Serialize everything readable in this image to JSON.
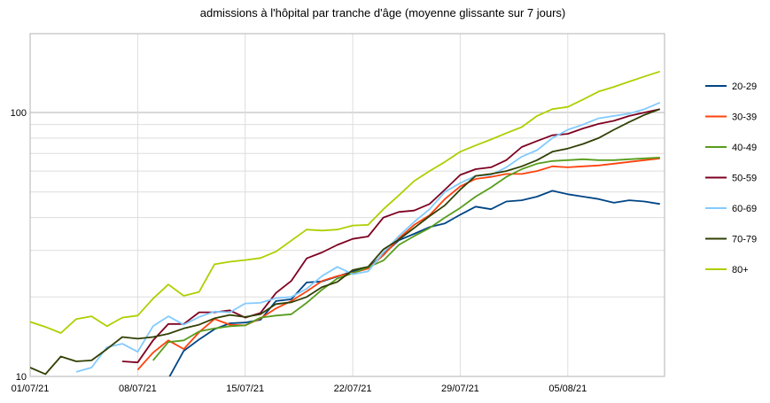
{
  "chart_data": {
    "type": "line",
    "title": "admissions à l'hôpital par tranche d'âge (moyenne glissante sur 7 jours)",
    "xlabel": "",
    "ylabel": "",
    "y_scale": "log",
    "ylim": [
      10,
      200
    ],
    "y_ticks": [
      10,
      100
    ],
    "y_tick_labels": [
      "10",
      "100"
    ],
    "x_tick_labels": [
      "01/07/21",
      "08/07/21",
      "15/07/21",
      "22/07/21",
      "29/07/21",
      "05/08/21"
    ],
    "x": [
      "01/07/21",
      "02/07/21",
      "03/07/21",
      "04/07/21",
      "05/07/21",
      "06/07/21",
      "07/07/21",
      "08/07/21",
      "09/07/21",
      "10/07/21",
      "11/07/21",
      "12/07/21",
      "13/07/21",
      "14/07/21",
      "15/07/21",
      "16/07/21",
      "17/07/21",
      "18/07/21",
      "19/07/21",
      "20/07/21",
      "21/07/21",
      "22/07/21",
      "23/07/21",
      "24/07/21",
      "25/07/21",
      "26/07/21",
      "27/07/21",
      "28/07/21",
      "29/07/21",
      "30/07/21",
      "31/07/21",
      "01/08/21",
      "02/08/21",
      "03/08/21",
      "04/08/21",
      "05/08/21",
      "06/08/21",
      "07/08/21",
      "08/08/21",
      "09/08/21",
      "10/08/21",
      "11/08/21"
    ],
    "legend_position": "right",
    "grid": true,
    "series": [
      {
        "name": "20-29",
        "color": "#004586",
        "values": [
          null,
          null,
          null,
          null,
          null,
          null,
          null,
          null,
          8.7,
          9.8,
          12.5,
          13.8,
          15.1,
          15.9,
          16.0,
          16.4,
          19.3,
          19.6,
          22.7,
          22.9,
          23.9,
          25.0,
          25.7,
          29.1,
          32.8,
          34.7,
          36.8,
          38.0,
          41.0,
          44.0,
          43.0,
          46.0,
          46.5,
          48.0,
          50.5,
          49.0,
          48.0,
          47.0,
          45.5,
          46.5,
          46.0,
          45.0
        ]
      },
      {
        "name": "30-39",
        "color": "#ff420e",
        "values": [
          null,
          null,
          null,
          null,
          null,
          null,
          null,
          10.6,
          12.3,
          13.7,
          12.7,
          14.7,
          16.5,
          15.7,
          15.6,
          16.6,
          18.1,
          19.3,
          21.0,
          23.0,
          24.0,
          24.7,
          25.6,
          28.8,
          33.3,
          37.5,
          40.8,
          47.0,
          52.5,
          56.0,
          57.0,
          58.5,
          58.5,
          60.0,
          62.5,
          62.0,
          62.5,
          63.0,
          64.0,
          65.0,
          66.0,
          67.0
        ]
      },
      {
        "name": "40-49",
        "color": "#579d1c",
        "values": [
          null,
          null,
          null,
          null,
          null,
          null,
          null,
          null,
          11.5,
          13.5,
          13.7,
          14.8,
          15.2,
          15.5,
          15.6,
          16.7,
          17.0,
          17.2,
          19.0,
          21.3,
          23.5,
          24.6,
          25.9,
          27.5,
          31.5,
          34.0,
          36.5,
          40.0,
          43.5,
          48.0,
          52.0,
          57.0,
          61.0,
          64.0,
          65.5,
          66.0,
          66.5,
          66.0,
          66.0,
          66.5,
          67.0,
          67.5
        ]
      },
      {
        "name": "50-59",
        "color": "#7e0021",
        "values": [
          null,
          null,
          null,
          null,
          null,
          null,
          11.4,
          11.3,
          13.7,
          15.8,
          15.8,
          17.5,
          17.5,
          17.8,
          16.7,
          17.4,
          20.7,
          23.0,
          28.0,
          29.5,
          31.5,
          33.2,
          33.9,
          40.0,
          42.0,
          42.5,
          45.0,
          51.0,
          58.0,
          61.0,
          62.0,
          66.0,
          74.0,
          78.0,
          82.0,
          83.0,
          87.0,
          90.5,
          93.0,
          97.0,
          100.0,
          103.0
        ]
      },
      {
        "name": "60-69",
        "color": "#83caff",
        "values": [
          null,
          null,
          null,
          10.4,
          10.8,
          12.9,
          13.3,
          12.4,
          15.5,
          16.9,
          15.7,
          16.8,
          17.6,
          17.5,
          18.9,
          19.0,
          19.8,
          20.0,
          21.5,
          24.0,
          26.0,
          24.4,
          25.0,
          29.5,
          34.0,
          38.5,
          43.0,
          50.0,
          54.0,
          57.5,
          58.0,
          62.0,
          68.0,
          72.0,
          80.0,
          86.0,
          90.0,
          95.0,
          97.0,
          99.0,
          103.0,
          109.0
        ]
      },
      {
        "name": "70-79",
        "color": "#314004",
        "values": [
          10.8,
          10.2,
          11.9,
          11.4,
          11.5,
          12.7,
          14.1,
          13.9,
          14.1,
          14.5,
          15.2,
          15.7,
          16.6,
          17.1,
          16.8,
          17.2,
          18.8,
          19.1,
          20.0,
          21.8,
          22.8,
          25.3,
          26.0,
          30.3,
          33.0,
          36.5,
          40.5,
          44.5,
          51.0,
          57.5,
          58.5,
          60.0,
          62.5,
          66.0,
          71.0,
          73.0,
          76.0,
          80.0,
          86.0,
          92.0,
          98.0,
          103.0
        ]
      },
      {
        "name": "80+",
        "color": "#aecf00",
        "values": [
          16.1,
          15.4,
          14.6,
          16.5,
          16.9,
          15.5,
          16.7,
          17.0,
          19.7,
          22.3,
          20.2,
          20.9,
          26.6,
          27.2,
          27.6,
          28.1,
          29.7,
          32.7,
          36.0,
          35.7,
          36.0,
          37.3,
          37.5,
          43.0,
          48.5,
          55.0,
          60.0,
          65.0,
          71.0,
          75.0,
          79.0,
          83.5,
          88.0,
          97.0,
          103.0,
          105.0,
          112.0,
          120.0,
          125.0,
          131.0,
          137.0,
          143.0
        ]
      }
    ]
  }
}
